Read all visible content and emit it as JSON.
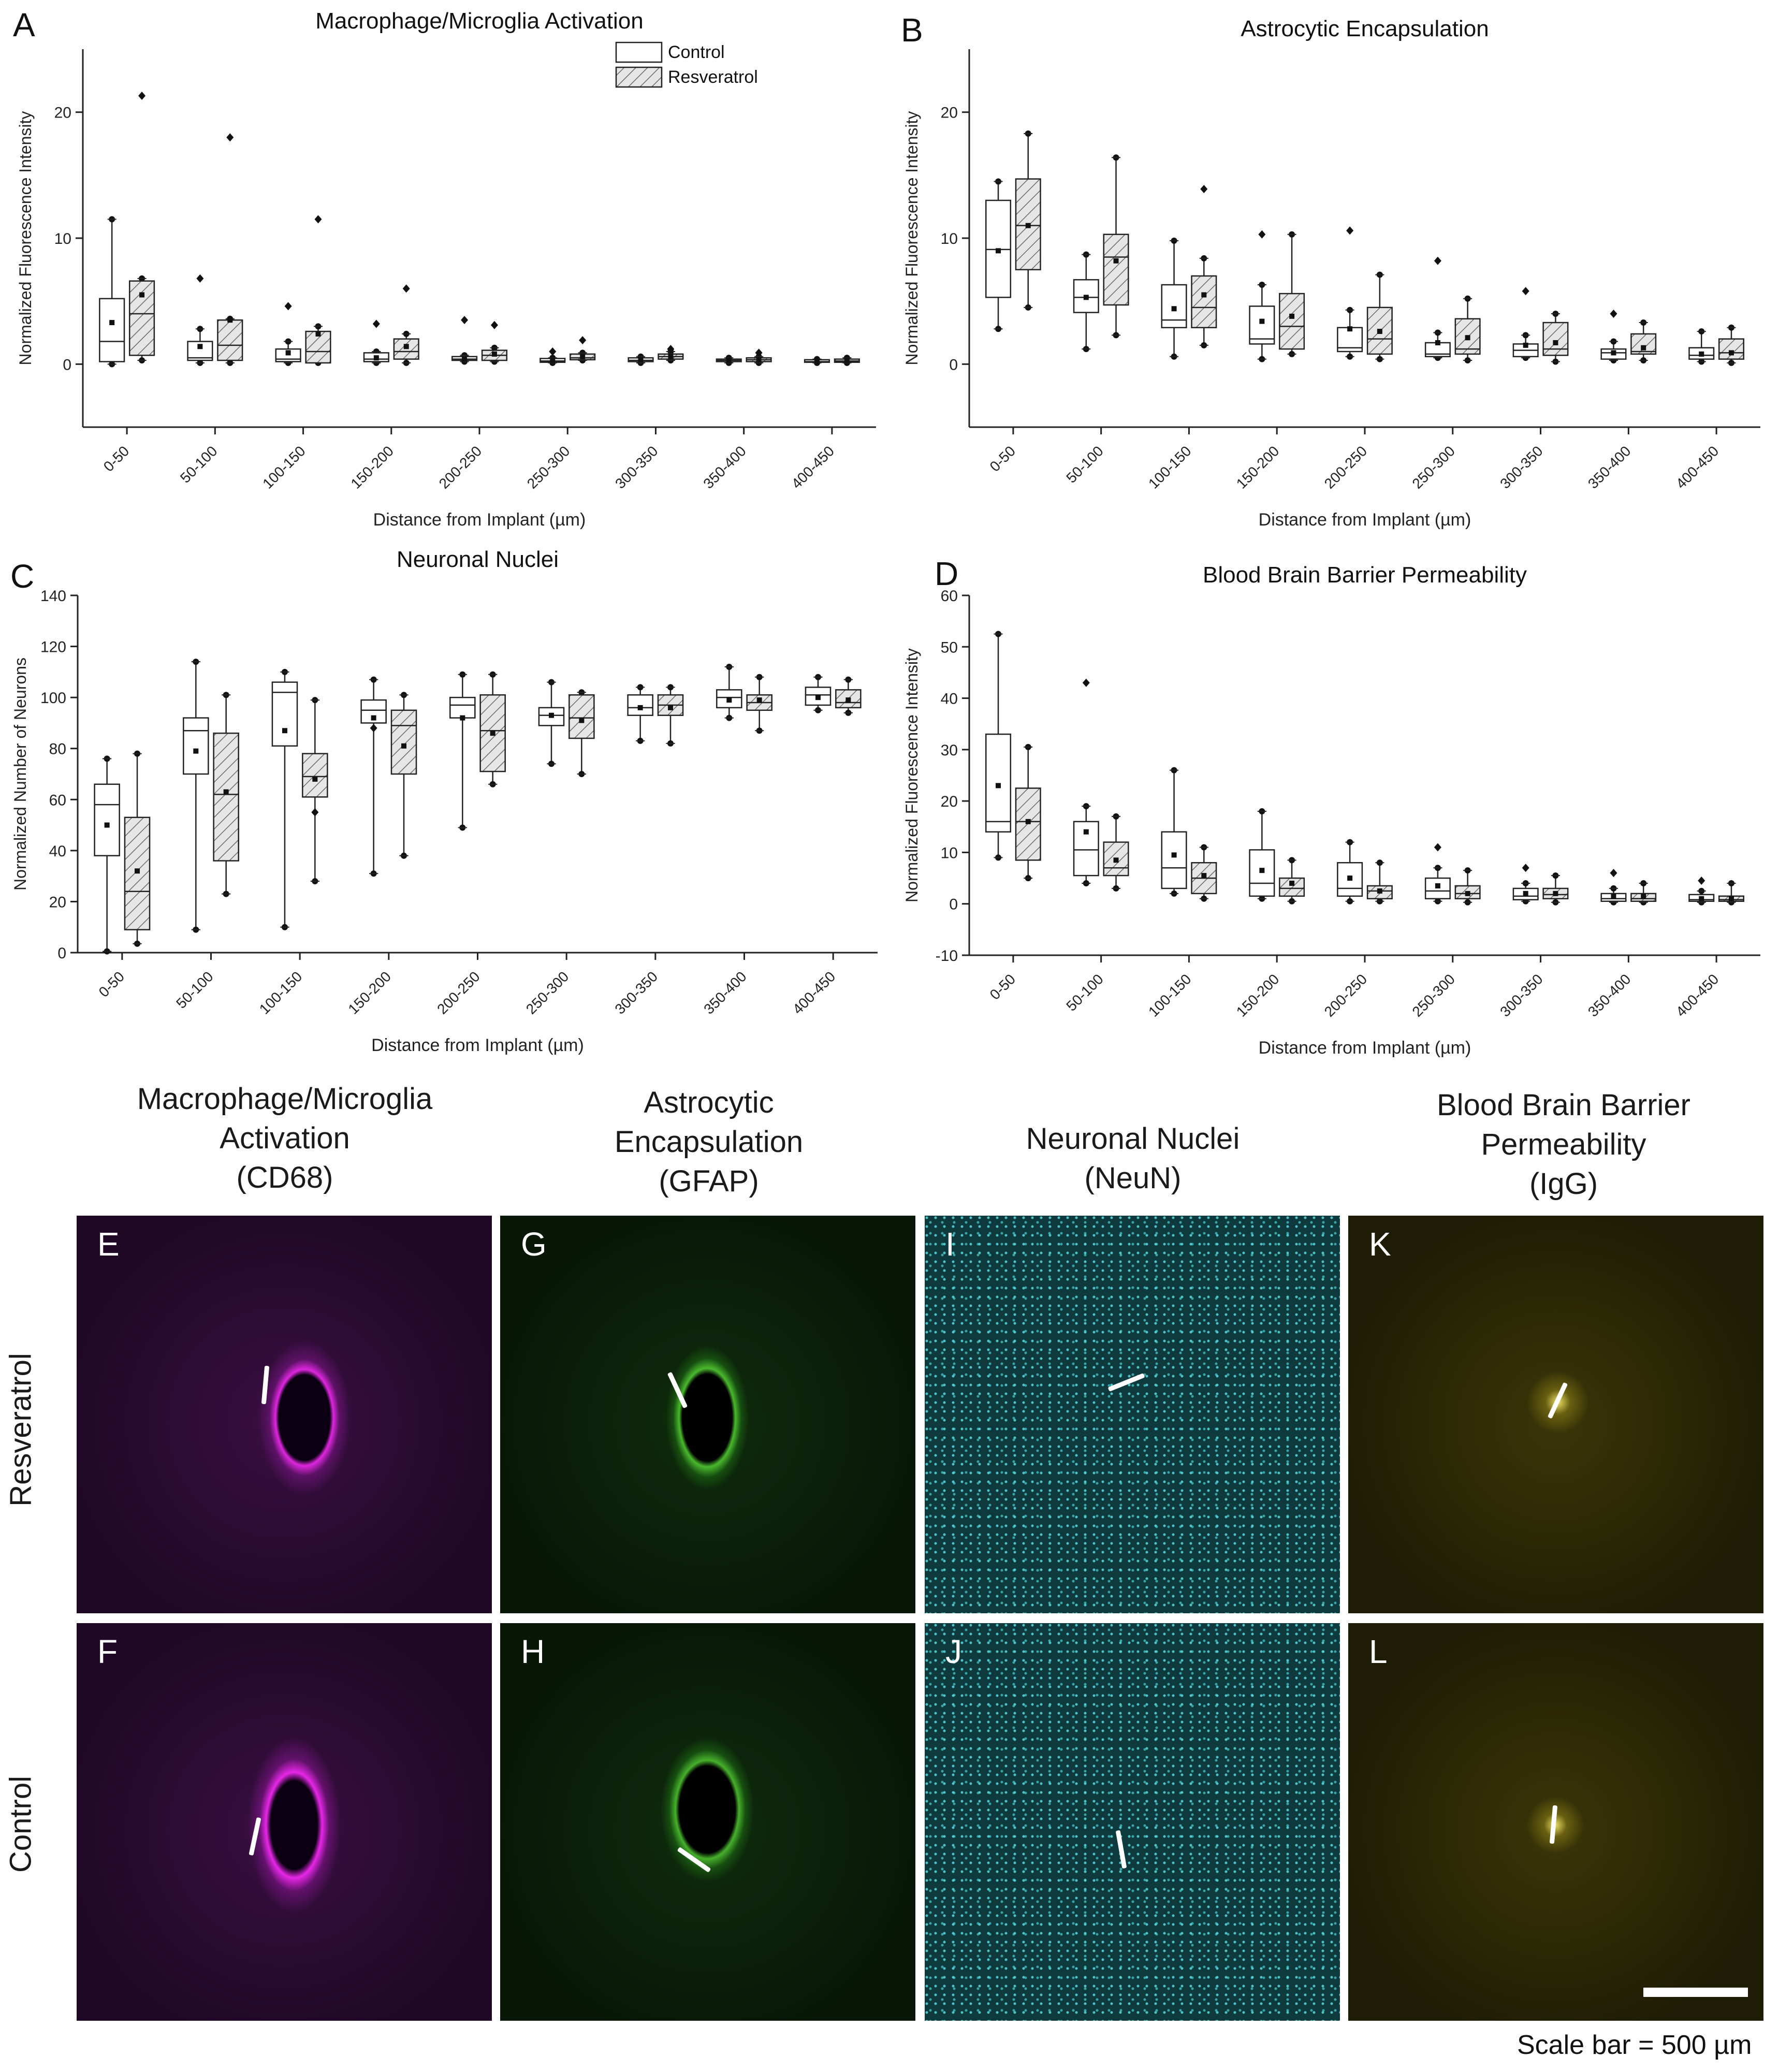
{
  "chart_data": [
    {
      "panel": "A",
      "type": "box",
      "title": "Macrophage/Microglia Activation",
      "xlabel": "Distance from Implant (µm)",
      "ylabel": "Normalized Fluorescence Intensity",
      "ylim": [
        -5,
        25
      ],
      "yticks": [
        0,
        10,
        20
      ],
      "categories": [
        "0-50",
        "50-100",
        "100-150",
        "150-200",
        "200-250",
        "250-300",
        "300-350",
        "350-400",
        "400-450"
      ],
      "legend": {
        "position": "top-right",
        "entries": [
          "Control",
          "Resveratrol"
        ]
      },
      "series": [
        {
          "name": "Control",
          "style": "open",
          "boxes": [
            {
              "min": 0.0,
              "q1": 0.2,
              "median": 1.8,
              "q3": 5.2,
              "max": 11.5,
              "mean": 3.3
            },
            {
              "min": 0.1,
              "q1": 0.3,
              "median": 0.5,
              "q3": 1.8,
              "max": 2.8,
              "mean": 1.4,
              "outliers": [
                6.8
              ]
            },
            {
              "min": 0.1,
              "q1": 0.2,
              "median": 0.4,
              "q3": 1.2,
              "max": 1.8,
              "mean": 0.9,
              "outliers": [
                4.6
              ]
            },
            {
              "min": 0.1,
              "q1": 0.2,
              "median": 0.4,
              "q3": 0.9,
              "max": 1.0,
              "mean": 0.5,
              "outliers": [
                3.2
              ]
            },
            {
              "min": 0.2,
              "q1": 0.3,
              "median": 0.4,
              "q3": 0.6,
              "max": 0.7,
              "mean": 0.4,
              "outliers": [
                3.5
              ]
            },
            {
              "min": 0.1,
              "q1": 0.15,
              "median": 0.25,
              "q3": 0.45,
              "max": 0.5,
              "mean": 0.3,
              "outliers": [
                1.0
              ]
            },
            {
              "min": 0.1,
              "q1": 0.2,
              "median": 0.3,
              "q3": 0.5,
              "max": 0.6,
              "mean": 0.35
            },
            {
              "min": 0.1,
              "q1": 0.2,
              "median": 0.3,
              "q3": 0.4,
              "max": 0.5,
              "mean": 0.3
            },
            {
              "min": 0.1,
              "q1": 0.15,
              "median": 0.2,
              "q3": 0.35,
              "max": 0.4,
              "mean": 0.25
            }
          ]
        },
        {
          "name": "Resveratrol",
          "style": "hatched",
          "boxes": [
            {
              "min": 0.3,
              "q1": 0.7,
              "median": 4.0,
              "q3": 6.6,
              "max": 6.8,
              "mean": 5.5,
              "outliers": [
                21.3
              ]
            },
            {
              "min": 0.1,
              "q1": 0.3,
              "median": 1.5,
              "q3": 3.5,
              "max": 3.6,
              "mean": 3.5,
              "outliers": [
                18.0
              ]
            },
            {
              "min": 0.1,
              "q1": 0.1,
              "median": 1.0,
              "q3": 2.6,
              "max": 3.0,
              "mean": 2.4,
              "outliers": [
                11.5
              ]
            },
            {
              "min": 0.1,
              "q1": 0.4,
              "median": 1.0,
              "q3": 2.0,
              "max": 2.4,
              "mean": 1.4,
              "outliers": [
                6.0
              ]
            },
            {
              "min": 0.2,
              "q1": 0.3,
              "median": 0.7,
              "q3": 1.1,
              "max": 1.3,
              "mean": 0.8,
              "outliers": [
                3.1
              ]
            },
            {
              "min": 0.3,
              "q1": 0.35,
              "median": 0.5,
              "q3": 0.8,
              "max": 0.9,
              "mean": 0.6,
              "outliers": [
                1.9
              ]
            },
            {
              "min": 0.3,
              "q1": 0.4,
              "median": 0.6,
              "q3": 0.8,
              "max": 1.0,
              "mean": 0.6,
              "outliers": [
                1.2
              ]
            },
            {
              "min": 0.1,
              "q1": 0.2,
              "median": 0.35,
              "q3": 0.5,
              "max": 0.6,
              "mean": 0.35,
              "outliers": [
                0.9
              ]
            },
            {
              "min": 0.1,
              "q1": 0.15,
              "median": 0.25,
              "q3": 0.4,
              "max": 0.5,
              "mean": 0.3
            }
          ]
        }
      ]
    },
    {
      "panel": "B",
      "type": "box",
      "title": "Astrocytic Encapsulation",
      "xlabel": "Distance from Implant (µm)",
      "ylabel": "Normalized Fluorescence Intensity",
      "ylim": [
        -5,
        25
      ],
      "yticks": [
        0,
        10,
        20
      ],
      "categories": [
        "0-50",
        "50-100",
        "100-150",
        "150-200",
        "200-250",
        "250-300",
        "300-350",
        "350-400",
        "400-450"
      ],
      "series": [
        {
          "name": "Control",
          "style": "open",
          "boxes": [
            {
              "min": 2.8,
              "q1": 5.3,
              "median": 9.1,
              "q3": 13.0,
              "max": 14.5,
              "mean": 9.0
            },
            {
              "min": 1.2,
              "q1": 4.1,
              "median": 5.3,
              "q3": 6.7,
              "max": 8.7,
              "mean": 5.3
            },
            {
              "min": 0.6,
              "q1": 2.9,
              "median": 3.5,
              "q3": 6.3,
              "max": 9.8,
              "mean": 4.4
            },
            {
              "min": 0.4,
              "q1": 1.6,
              "median": 2.0,
              "q3": 4.6,
              "max": 6.3,
              "mean": 3.4,
              "outliers": [
                10.3
              ]
            },
            {
              "min": 0.6,
              "q1": 1.0,
              "median": 1.3,
              "q3": 2.9,
              "max": 4.3,
              "mean": 2.8,
              "outliers": [
                10.6
              ]
            },
            {
              "min": 0.5,
              "q1": 0.6,
              "median": 0.8,
              "q3": 1.7,
              "max": 2.5,
              "mean": 1.7,
              "outliers": [
                8.2
              ]
            },
            {
              "min": 0.5,
              "q1": 0.6,
              "median": 1.1,
              "q3": 1.6,
              "max": 2.3,
              "mean": 1.5,
              "outliers": [
                5.8
              ]
            },
            {
              "min": 0.3,
              "q1": 0.4,
              "median": 0.9,
              "q3": 1.2,
              "max": 1.8,
              "mean": 0.9,
              "outliers": [
                4.0
              ]
            },
            {
              "min": 0.2,
              "q1": 0.4,
              "median": 0.7,
              "q3": 1.3,
              "max": 2.6,
              "mean": 0.8
            }
          ]
        },
        {
          "name": "Resveratrol",
          "style": "hatched",
          "boxes": [
            {
              "min": 4.5,
              "q1": 7.5,
              "median": 11.0,
              "q3": 14.7,
              "max": 18.3,
              "mean": 11.0
            },
            {
              "min": 2.3,
              "q1": 4.7,
              "median": 8.5,
              "q3": 10.3,
              "max": 16.4,
              "mean": 8.2
            },
            {
              "min": 1.5,
              "q1": 2.9,
              "median": 4.5,
              "q3": 7.0,
              "max": 8.4,
              "mean": 5.5,
              "outliers": [
                13.9
              ]
            },
            {
              "min": 0.8,
              "q1": 1.2,
              "median": 3.0,
              "q3": 5.6,
              "max": 10.3,
              "mean": 3.8
            },
            {
              "min": 0.4,
              "q1": 0.8,
              "median": 2.0,
              "q3": 4.5,
              "max": 7.1,
              "mean": 2.6
            },
            {
              "min": 0.3,
              "q1": 0.8,
              "median": 1.2,
              "q3": 3.6,
              "max": 5.2,
              "mean": 2.1
            },
            {
              "min": 0.2,
              "q1": 0.7,
              "median": 1.2,
              "q3": 3.3,
              "max": 4.0,
              "mean": 1.7
            },
            {
              "min": 0.3,
              "q1": 0.8,
              "median": 1.0,
              "q3": 2.4,
              "max": 3.3,
              "mean": 1.3
            },
            {
              "min": 0.1,
              "q1": 0.4,
              "median": 0.9,
              "q3": 2.0,
              "max": 2.9,
              "mean": 0.9
            }
          ]
        }
      ]
    },
    {
      "panel": "C",
      "type": "box",
      "title": "Neuronal Nuclei",
      "xlabel": "Distance from Implant (µm)",
      "ylabel": "Normalized Number of Neurons",
      "ylim": [
        0,
        140
      ],
      "yticks": [
        0,
        20,
        40,
        60,
        80,
        100,
        120,
        140
      ],
      "categories": [
        "0-50",
        "50-100",
        "100-150",
        "150-200",
        "200-250",
        "250-300",
        "300-350",
        "350-400",
        "400-450"
      ],
      "series": [
        {
          "name": "Control",
          "style": "open",
          "boxes": [
            {
              "min": 0.5,
              "q1": 38,
              "median": 58,
              "q3": 66,
              "max": 76,
              "mean": 50
            },
            {
              "min": 9,
              "q1": 70,
              "median": 87,
              "q3": 92,
              "max": 114,
              "mean": 79
            },
            {
              "min": 10,
              "q1": 81,
              "median": 102,
              "q3": 106,
              "max": 110,
              "mean": 87
            },
            {
              "min": 31,
              "q1": 90,
              "median": 95,
              "q3": 99,
              "max": 107,
              "mean": 92,
              "outliers": [
                88
              ]
            },
            {
              "min": 49,
              "q1": 92,
              "median": 97,
              "q3": 100,
              "max": 109,
              "mean": 92
            },
            {
              "min": 74,
              "q1": 89,
              "median": 93,
              "q3": 96,
              "max": 106,
              "mean": 93
            },
            {
              "min": 83,
              "q1": 93,
              "median": 96,
              "q3": 101,
              "max": 104,
              "mean": 96
            },
            {
              "min": 92,
              "q1": 96,
              "median": 100,
              "q3": 103,
              "max": 112,
              "mean": 99
            },
            {
              "min": 95,
              "q1": 97,
              "median": 101,
              "q3": 104,
              "max": 108,
              "mean": 100
            }
          ]
        },
        {
          "name": "Resveratrol",
          "style": "hatched",
          "boxes": [
            {
              "min": 3.5,
              "q1": 9,
              "median": 24,
              "q3": 53,
              "max": 78,
              "mean": 32
            },
            {
              "min": 23,
              "q1": 36,
              "median": 62,
              "q3": 86,
              "max": 101,
              "mean": 63
            },
            {
              "min": 28,
              "q1": 61,
              "median": 69,
              "q3": 78,
              "max": 99,
              "mean": 68,
              "outliers": [
                55
              ]
            },
            {
              "min": 38,
              "q1": 70,
              "median": 89,
              "q3": 95,
              "max": 101,
              "mean": 81
            },
            {
              "min": 66,
              "q1": 71,
              "median": 87,
              "q3": 101,
              "max": 109,
              "mean": 86
            },
            {
              "min": 70,
              "q1": 84,
              "median": 92,
              "q3": 101,
              "max": 102,
              "mean": 91
            },
            {
              "min": 82,
              "q1": 93,
              "median": 97,
              "q3": 101,
              "max": 104,
              "mean": 96
            },
            {
              "min": 87,
              "q1": 95,
              "median": 98,
              "q3": 101,
              "max": 108,
              "mean": 99
            },
            {
              "min": 94,
              "q1": 96,
              "median": 98,
              "q3": 103,
              "max": 107,
              "mean": 99
            }
          ]
        }
      ]
    },
    {
      "panel": "D",
      "type": "box",
      "title": "Blood Brain Barrier Permeability",
      "xlabel": "Distance from Implant (µm)",
      "ylabel": "Normalized Fluorescence Intensity",
      "ylim": [
        -10,
        60
      ],
      "yticks": [
        -10,
        0,
        10,
        20,
        30,
        40,
        50,
        60
      ],
      "categories": [
        "0-50",
        "50-100",
        "100-150",
        "150-200",
        "200-250",
        "250-300",
        "300-350",
        "350-400",
        "400-450"
      ],
      "series": [
        {
          "name": "Control",
          "style": "open",
          "boxes": [
            {
              "min": 9,
              "q1": 14,
              "median": 16,
              "q3": 33,
              "max": 52.5,
              "mean": 23
            },
            {
              "min": 4,
              "q1": 5.5,
              "median": 10.5,
              "q3": 16,
              "max": 19,
              "mean": 14,
              "outliers": [
                43
              ]
            },
            {
              "min": 2,
              "q1": 3,
              "median": 7,
              "q3": 14,
              "max": 26,
              "mean": 9.5
            },
            {
              "min": 1,
              "q1": 1.5,
              "median": 4,
              "q3": 10.5,
              "max": 18,
              "mean": 6.5
            },
            {
              "min": 0.5,
              "q1": 1.5,
              "median": 3,
              "q3": 8,
              "max": 12,
              "mean": 5
            },
            {
              "min": 0.5,
              "q1": 1,
              "median": 2.5,
              "q3": 5,
              "max": 7,
              "mean": 3.5,
              "outliers": [
                11
              ]
            },
            {
              "min": 0.5,
              "q1": 0.8,
              "median": 1.5,
              "q3": 3,
              "max": 4,
              "mean": 2,
              "outliers": [
                7
              ]
            },
            {
              "min": 0.3,
              "q1": 0.5,
              "median": 1,
              "q3": 2,
              "max": 3,
              "mean": 1.5,
              "outliers": [
                6
              ]
            },
            {
              "min": 0.3,
              "q1": 0.5,
              "median": 0.8,
              "q3": 1.8,
              "max": 2.5,
              "mean": 1,
              "outliers": [
                4.5
              ]
            }
          ]
        },
        {
          "name": "Resveratrol",
          "style": "hatched",
          "boxes": [
            {
              "min": 5,
              "q1": 8.5,
              "median": 16,
              "q3": 22.5,
              "max": 30.5,
              "mean": 16
            },
            {
              "min": 3,
              "q1": 5.5,
              "median": 7,
              "q3": 12,
              "max": 17,
              "mean": 8.5
            },
            {
              "min": 1,
              "q1": 2,
              "median": 5,
              "q3": 8,
              "max": 11,
              "mean": 5.5
            },
            {
              "min": 0.5,
              "q1": 1.5,
              "median": 3,
              "q3": 5,
              "max": 8.5,
              "mean": 4
            },
            {
              "min": 0.5,
              "q1": 1,
              "median": 2.5,
              "q3": 3.5,
              "max": 8,
              "mean": 2.5
            },
            {
              "min": 0.3,
              "q1": 1,
              "median": 2,
              "q3": 3.5,
              "max": 6.5,
              "mean": 2
            },
            {
              "min": 0.3,
              "q1": 1,
              "median": 1.8,
              "q3": 3,
              "max": 5.5,
              "mean": 2
            },
            {
              "min": 0.3,
              "q1": 0.5,
              "median": 1,
              "q3": 2,
              "max": 4,
              "mean": 1.5
            },
            {
              "min": 0.3,
              "q1": 0.5,
              "median": 0.8,
              "q3": 1.5,
              "max": 4,
              "mean": 1
            }
          ]
        }
      ]
    }
  ],
  "micrographs": {
    "columns": [
      {
        "title_lines": [
          "Macrophage/Microglia",
          "Activation",
          "(CD68)"
        ],
        "color": "#a022b4"
      },
      {
        "title_lines": [
          "Astrocytic",
          "Encapsulation",
          "(GFAP)"
        ],
        "color": "#2aa81a"
      },
      {
        "title_lines": [
          "Neuronal Nuclei",
          "(NeuN)"
        ],
        "color": "#2ab0b8"
      },
      {
        "title_lines": [
          "Blood Brain Barrier",
          "Permeability",
          "(IgG)"
        ],
        "color": "#b8a818"
      }
    ],
    "rows": [
      "Resveratrol",
      "Control"
    ],
    "tiles": [
      {
        "letter": "E",
        "marker": "magenta-implant"
      },
      {
        "letter": "G",
        "marker": "green-implant"
      },
      {
        "letter": "I",
        "marker": "cyan-implant"
      },
      {
        "letter": "K",
        "marker": "yellow-implant"
      },
      {
        "letter": "F",
        "marker": "magenta-implant"
      },
      {
        "letter": "H",
        "marker": "green-implant"
      },
      {
        "letter": "J",
        "marker": "cyan-implant"
      },
      {
        "letter": "L",
        "marker": "yellow-implant"
      }
    ],
    "scale_text": "Scale bar = 500 µm"
  }
}
